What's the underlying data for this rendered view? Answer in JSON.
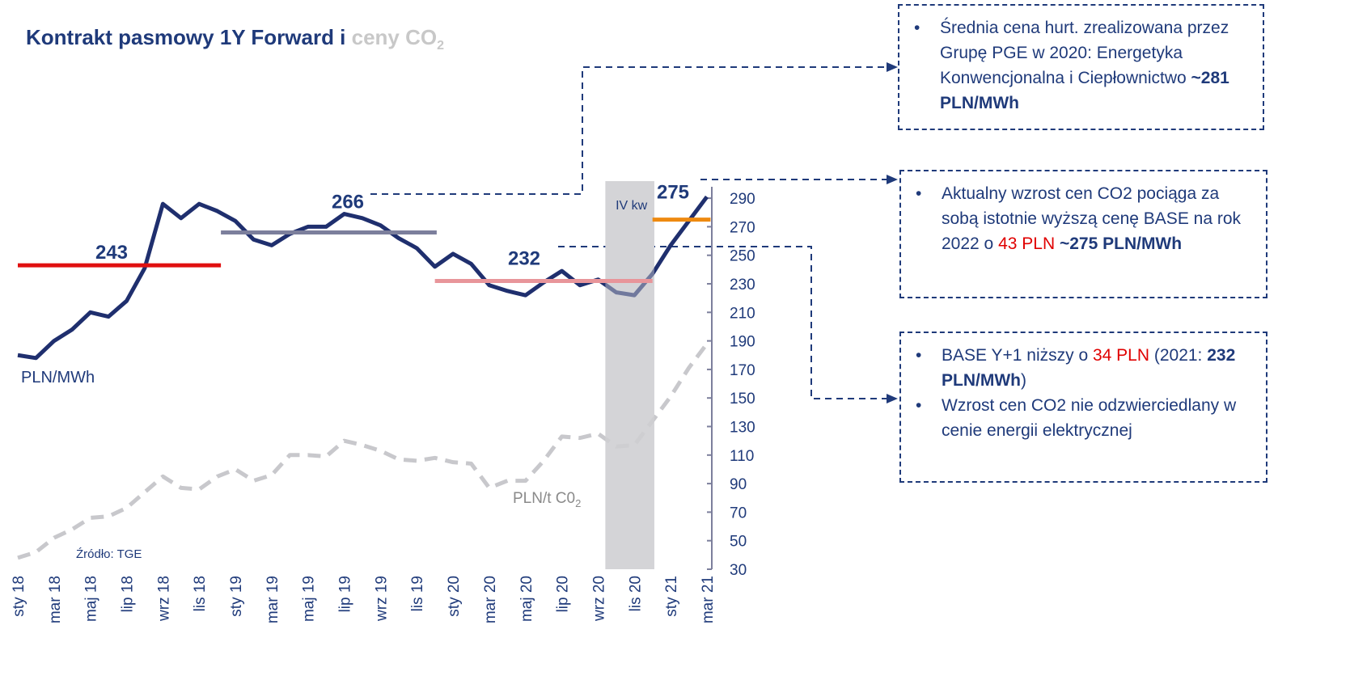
{
  "chart_data": {
    "type": "line",
    "title": [
      {
        "text": "Kontrakt pasmowy 1Y Forward i ",
        "style": "main"
      },
      {
        "text": "ceny CO",
        "style": "grey"
      },
      {
        "text": "2",
        "style": "grey-sub"
      }
    ],
    "categories": [
      "sty 18",
      null,
      "mar 18",
      null,
      "maj 18",
      null,
      "lip 18",
      null,
      "wrz 18",
      null,
      "lis 18",
      null,
      "sty 19",
      null,
      "mar 19",
      null,
      "maj 19",
      null,
      "lip 19",
      null,
      "wrz 19",
      null,
      "lis 19",
      null,
      "sty 20",
      null,
      "mar 20",
      null,
      "maj 20",
      null,
      "lip 20",
      null,
      "wrz 20",
      null,
      "lis 20",
      null,
      "sty 21",
      null,
      "mar 21"
    ],
    "series": [
      {
        "name": "PLN/MWh",
        "color": "#1f2f6e",
        "dashed": false,
        "values": [
          180,
          178,
          190,
          198,
          210,
          207,
          218,
          241,
          286,
          276,
          286,
          281,
          274,
          261,
          257,
          265,
          270,
          270,
          279,
          276,
          271,
          262,
          255,
          242,
          251,
          244,
          229,
          225,
          222,
          231,
          239,
          229,
          233,
          224,
          222,
          237,
          257,
          274,
          291
        ]
      },
      {
        "name": [
          {
            "text": "PLN/t C0"
          },
          {
            "text": "2"
          }
        ],
        "color": "#c8c8cc",
        "dashed": true,
        "values": [
          38,
          42,
          52,
          58,
          66,
          67,
          73,
          84,
          95,
          87,
          86,
          95,
          100,
          92,
          96,
          110,
          110,
          109,
          120,
          117,
          113,
          107,
          106,
          108,
          105,
          104,
          87,
          92,
          92,
          106,
          123,
          122,
          125,
          116,
          117,
          134,
          151,
          171,
          188
        ]
      }
    ],
    "levels": [
      {
        "value": 243,
        "color": "#e01010",
        "x": [
          0,
          11.2
        ]
      },
      {
        "value": 266,
        "color": "#7c7f9c",
        "x": [
          11.2,
          23.1
        ]
      },
      {
        "value": 232,
        "color": "#e8959a",
        "x": [
          23,
          35
        ]
      },
      {
        "value": 275,
        "color": "#ee8a10",
        "x": [
          35,
          38.2
        ]
      }
    ],
    "band": {
      "label": "IV kw",
      "x": [
        32.4,
        35.1
      ]
    },
    "ylim": [
      30,
      298
    ],
    "yticks": [
      30,
      50,
      70,
      90,
      110,
      130,
      150,
      170,
      190,
      210,
      230,
      250,
      270,
      290
    ],
    "source": "Źródło: TGE"
  },
  "notes": [
    {
      "bullets": [
        [
          {
            "text": "Średnia cena hurt. zrealizowana przez Grupę PGE w 2020: Energetyka Konwencjonalna i Ciepłownictwo ",
            "style": ""
          },
          {
            "text": "~281 PLN/MWh",
            "style": "b"
          }
        ]
      ]
    },
    {
      "bullets": [
        [
          {
            "text": "Aktualny wzrost cen CO2 pociąga za sobą istotnie wyższą cenę BASE na rok 2022 o ",
            "style": ""
          },
          {
            "text": "43 PLN",
            "style": "r"
          },
          {
            "text": " ",
            "style": ""
          },
          {
            "text": "~275 PLN/MWh",
            "style": "b"
          }
        ]
      ]
    },
    {
      "bullets": [
        [
          {
            "text": "BASE Y+1 niższy o ",
            "style": ""
          },
          {
            "text": "34 PLN",
            "style": "r"
          },
          {
            "text": " (2021: ",
            "style": ""
          },
          {
            "text": "232 PLN/MWh",
            "style": "b"
          },
          {
            "text": ")",
            "style": ""
          }
        ],
        [
          {
            "text": "Wzrost cen CO2 nie odzwierciedlany w cenie energii elektrycznej",
            "style": ""
          }
        ]
      ]
    }
  ]
}
